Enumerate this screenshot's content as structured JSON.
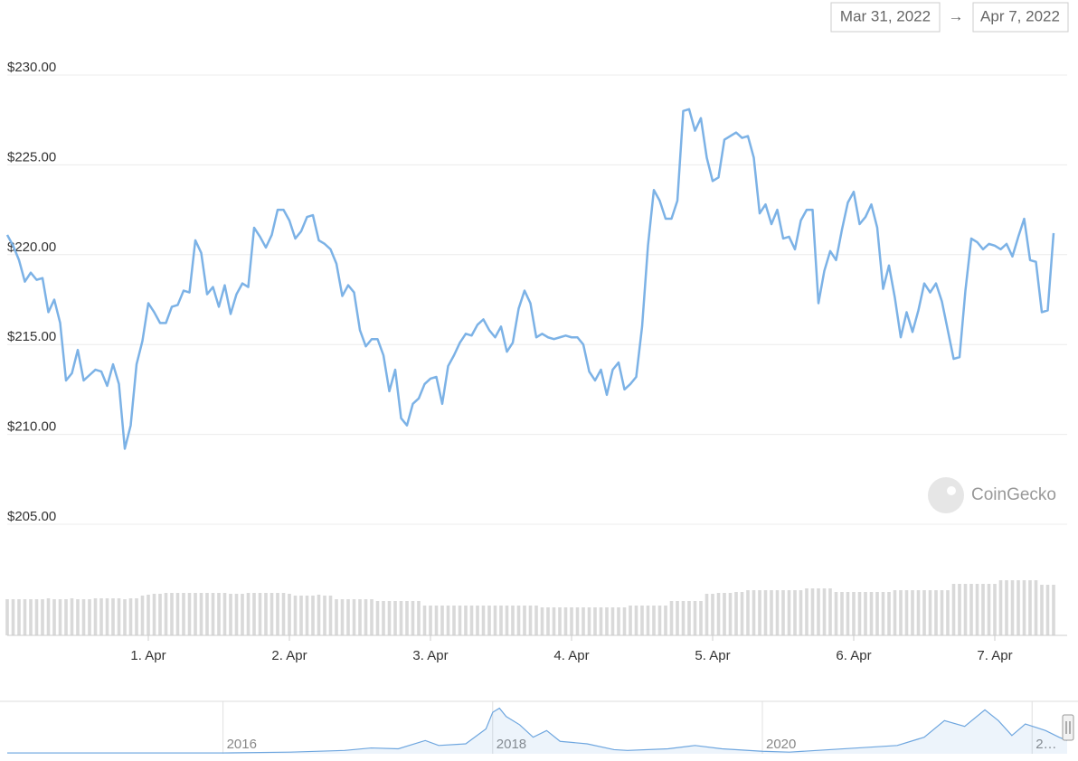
{
  "chart_data": [
    {
      "type": "line",
      "range_from": "Mar 31, 2022",
      "range_separator": "→",
      "range_to": "Apr 7, 2022",
      "watermark": "CoinGecko",
      "x": [
        0,
        1,
        2,
        3,
        4,
        5,
        6,
        7,
        8,
        9,
        10,
        11,
        12,
        13,
        14,
        15,
        16,
        17,
        18,
        19,
        20,
        21,
        22,
        23,
        24,
        25,
        26,
        27,
        28,
        29,
        30,
        31,
        32,
        33,
        34,
        35,
        36,
        37,
        38,
        39,
        40,
        41,
        42,
        43,
        44,
        45,
        46,
        47,
        48,
        49,
        50,
        51,
        52,
        53,
        54,
        55,
        56,
        57,
        58,
        59,
        60,
        61,
        62,
        63,
        64,
        65,
        66,
        67,
        68,
        69,
        70,
        71,
        72,
        73,
        74,
        75,
        76,
        77,
        78,
        79,
        80,
        81,
        82,
        83,
        84,
        85,
        86,
        87,
        88,
        89,
        90,
        91,
        92,
        93,
        94,
        95,
        96,
        97,
        98,
        99,
        100,
        101,
        102,
        103,
        104,
        105,
        106,
        107,
        108,
        109,
        110,
        111,
        112,
        113,
        114,
        115,
        116,
        117,
        118,
        119,
        120,
        121,
        122,
        123,
        124,
        125,
        126,
        127,
        128,
        129,
        130,
        131,
        132,
        133,
        134,
        135,
        136,
        137,
        138,
        139,
        140,
        141,
        142,
        143,
        144,
        145,
        146,
        147,
        148,
        149,
        150,
        151,
        152,
        153,
        154,
        155,
        156,
        157,
        158,
        159,
        160,
        161,
        162,
        163,
        164,
        165,
        166,
        167,
        168,
        169,
        170,
        171,
        172,
        173,
        174,
        175,
        176,
        177,
        178
      ],
      "xlim": [
        0,
        180
      ],
      "xticks": [
        {
          "value": 24,
          "label": "1. Apr"
        },
        {
          "value": 48,
          "label": "2. Apr"
        },
        {
          "value": 72,
          "label": "3. Apr"
        },
        {
          "value": 96,
          "label": "4. Apr"
        },
        {
          "value": 120,
          "label": "5. Apr"
        },
        {
          "value": 144,
          "label": "6. Apr"
        },
        {
          "value": 168,
          "label": "7. Apr"
        }
      ],
      "ylim": [
        205,
        230
      ],
      "yticks": [
        {
          "value": 205,
          "label": "$205.00"
        },
        {
          "value": 210,
          "label": "$210.00"
        },
        {
          "value": 215,
          "label": "$215.00"
        },
        {
          "value": 220,
          "label": "$220.00"
        },
        {
          "value": 225,
          "label": "$225.00"
        },
        {
          "value": 230,
          "label": "$230.00"
        }
      ],
      "grid": true,
      "series": [
        {
          "color": "#7cb2e6",
          "values": [
            221.1,
            220.5,
            219.7,
            218.5,
            219.0,
            218.6,
            218.7,
            216.8,
            217.5,
            216.2,
            213.0,
            213.4,
            214.7,
            213.0,
            213.3,
            213.6,
            213.5,
            212.7,
            213.9,
            212.8,
            209.2,
            210.5,
            213.9,
            215.2,
            217.3,
            216.8,
            216.2,
            216.2,
            217.1,
            217.2,
            218.0,
            217.9,
            220.8,
            220.1,
            217.8,
            218.2,
            217.1,
            218.3,
            216.7,
            217.8,
            218.4,
            218.2,
            221.5,
            221.0,
            220.4,
            221.1,
            222.5,
            222.5,
            221.9,
            220.9,
            221.3,
            222.1,
            222.2,
            220.8,
            220.6,
            220.3,
            219.5,
            217.7,
            218.3,
            217.9,
            215.8,
            214.9,
            215.3,
            215.3,
            214.4,
            212.4,
            213.6,
            210.9,
            210.5,
            211.7,
            212.0,
            212.8,
            213.1,
            213.2,
            211.7,
            213.8,
            214.4,
            215.1,
            215.6,
            215.5,
            216.1,
            216.4,
            215.8,
            215.4,
            216.0,
            214.6,
            215.1,
            217.0,
            218.0,
            217.3,
            215.4,
            215.6,
            215.4,
            215.3,
            215.4,
            215.5,
            215.4,
            215.4,
            215.0,
            213.5,
            213.0,
            213.6,
            212.2,
            213.6,
            214.0,
            212.5,
            212.8,
            213.2,
            216.0,
            220.5,
            223.6,
            223.0,
            222.0,
            222.0,
            223.0,
            228.0,
            228.1,
            226.9,
            227.6,
            225.4,
            224.1,
            224.3,
            226.4,
            226.6,
            226.8,
            226.5,
            226.6,
            225.4,
            222.3,
            222.8,
            221.7,
            222.5,
            220.9,
            221.0,
            220.3,
            221.9,
            222.5,
            222.5,
            217.3,
            219.1,
            220.2,
            219.7,
            221.4,
            222.9,
            223.5,
            221.7,
            222.1,
            222.8,
            221.5,
            218.1,
            219.4,
            217.6,
            215.4,
            216.8,
            215.7,
            216.9,
            218.4,
            217.9,
            218.4,
            217.4,
            215.8,
            214.2,
            214.3,
            218.0,
            220.9,
            220.7,
            220.3,
            220.6,
            220.5,
            220.3,
            220.6,
            219.9,
            221.0,
            222.0,
            219.7,
            219.6,
            216.8,
            216.9,
            221.2
          ]
        }
      ],
      "volume": {
        "color": "#d9d9d9",
        "ylim": [
          0,
          65
        ],
        "values": [
          40,
          40,
          40,
          40,
          40,
          40,
          40,
          41,
          40,
          40,
          40,
          41,
          40,
          40,
          40,
          41,
          41,
          41,
          41,
          41,
          40,
          41,
          41,
          44,
          45,
          46,
          46,
          47,
          47,
          47,
          47,
          47,
          47,
          47,
          47,
          47,
          47,
          47,
          46,
          46,
          46,
          47,
          47,
          47,
          47,
          47,
          47,
          47,
          46,
          44,
          44,
          44,
          44,
          45,
          44,
          44,
          40,
          40,
          40,
          40,
          40,
          40,
          40,
          38,
          38,
          38,
          38,
          38,
          38,
          38,
          38,
          33,
          33,
          33,
          33,
          33,
          33,
          33,
          33,
          33,
          33,
          33,
          33,
          33,
          33,
          33,
          33,
          33,
          33,
          33,
          33,
          31,
          31,
          31,
          31,
          31,
          31,
          31,
          31,
          31,
          31,
          31,
          31,
          31,
          31,
          31,
          33,
          33,
          33,
          33,
          33,
          33,
          33,
          38,
          38,
          38,
          38,
          38,
          38,
          46,
          46,
          47,
          47,
          47,
          48,
          48,
          50,
          50,
          50,
          50,
          50,
          50,
          50,
          50,
          50,
          50,
          52,
          52,
          52,
          52,
          52,
          48,
          48,
          48,
          48,
          48,
          48,
          48,
          48,
          48,
          48,
          50,
          50,
          50,
          50,
          50,
          50,
          50,
          50,
          50,
          50,
          57,
          57,
          57,
          57,
          57,
          57,
          57,
          57,
          61,
          61,
          61,
          61,
          61,
          61,
          61,
          56,
          56,
          56
        ]
      }
    },
    {
      "type": "navigator",
      "x": [
        2014.4,
        2015,
        2015.5,
        2016,
        2016.5,
        2016.9,
        2017.1,
        2017.3,
        2017.5,
        2017.6,
        2017.8,
        2017.95,
        2018.0,
        2018.05,
        2018.1,
        2018.2,
        2018.3,
        2018.4,
        2018.5,
        2018.7,
        2018.9,
        2019,
        2019.3,
        2019.5,
        2019.7,
        2020,
        2020.2,
        2020.5,
        2020.8,
        2021,
        2021.2,
        2021.35,
        2021.5,
        2021.65,
        2021.75,
        2021.85,
        2021.95,
        2022.1,
        2022.2,
        2022.26
      ],
      "values": [
        1,
        1,
        1,
        1,
        2,
        4,
        7,
        6,
        16,
        10,
        12,
        30,
        50,
        55,
        45,
        35,
        20,
        28,
        15,
        12,
        5,
        4,
        6,
        10,
        6,
        3,
        2,
        5,
        8,
        10,
        20,
        40,
        33,
        53,
        40,
        22,
        36,
        28,
        20,
        16
      ],
      "color": "#6ea6df",
      "xlim": [
        2014.4,
        2022.26
      ],
      "ylim": [
        0,
        60
      ],
      "xticks": [
        2016,
        2018,
        2020,
        {
          "value": 2022,
          "label": "2…"
        }
      ]
    }
  ]
}
